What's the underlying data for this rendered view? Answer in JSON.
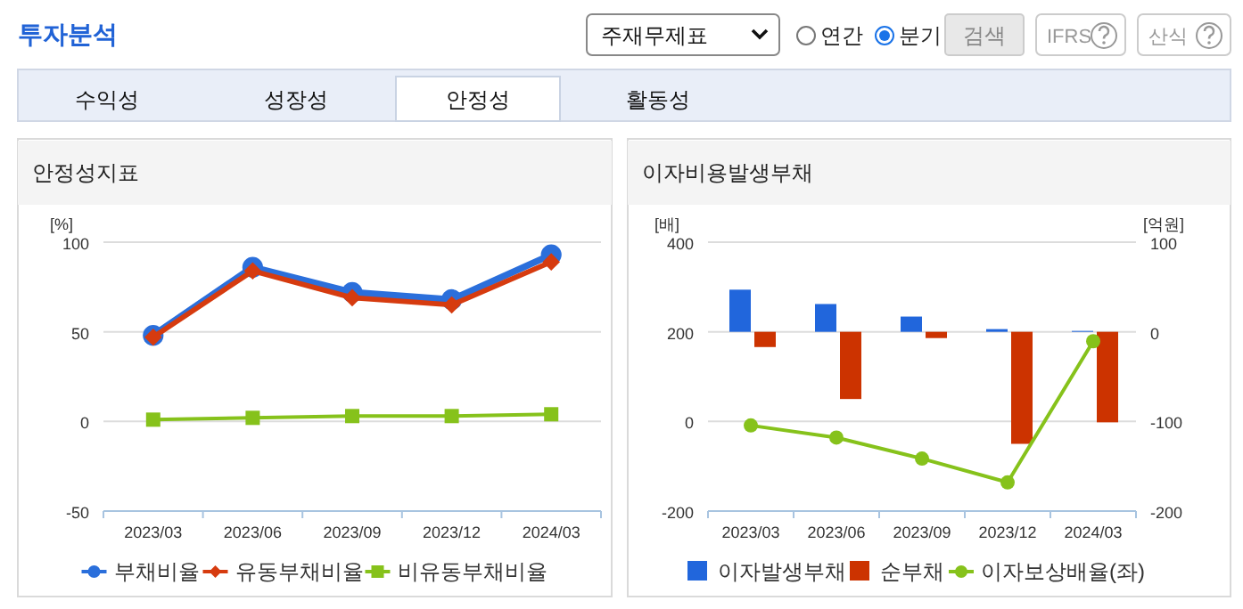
{
  "chart_data": [
    {
      "type": "other",
      "title": "투자분석",
      "annotations": [
        "주재무제표",
        "연간",
        "분기",
        "검색",
        "IFRS",
        "산식",
        "수익성",
        "성장성",
        "안정성",
        "활동성"
      ]
    },
    {
      "type": "line",
      "title": "안정성지표",
      "ylabel": "[%]",
      "categories": [
        "2023/03",
        "2023/06",
        "2023/09",
        "2023/12",
        "2024/03"
      ],
      "series": [
        {
          "name": "부채비율",
          "color": "#2b6fdb",
          "marker": "circle",
          "values": [
            48,
            86,
            72,
            68,
            93
          ]
        },
        {
          "name": "유동부채비율",
          "color": "#d63b0f",
          "marker": "diamond",
          "values": [
            47,
            84,
            69,
            65,
            89
          ]
        },
        {
          "name": "비유동부채비율",
          "color": "#86c21b",
          "marker": "square",
          "values": [
            1,
            2,
            3,
            3,
            4
          ]
        }
      ],
      "ylim": [
        -50,
        100
      ],
      "yticks": [
        -50,
        0,
        50,
        100
      ],
      "grid": "y",
      "legend": "bottom"
    },
    {
      "type": "bar",
      "title": "이자비용발생부채",
      "ylabel": "[배]",
      "y2label": "[억원]",
      "categories": [
        "2023/03",
        "2023/06",
        "2023/09",
        "2023/12",
        "2024/03"
      ],
      "series": [
        {
          "name": "이자발생부채",
          "color": "#2166dc",
          "axis": "y2",
          "values": [
            47,
            31,
            17,
            3,
            1
          ]
        },
        {
          "name": "순부채",
          "color": "#cc3300",
          "axis": "y2",
          "values": [
            -17,
            -75,
            -7,
            -125,
            -101
          ]
        },
        {
          "name": "이자보상배율(좌)",
          "type": "line",
          "color": "#86c21b",
          "marker": "circle",
          "axis": "y",
          "values": [
            -9,
            -36,
            -83,
            -136,
            179
          ]
        }
      ],
      "ylim": [
        -200,
        400
      ],
      "yticks": [
        -200,
        0,
        200,
        400
      ],
      "y2lim": [
        -200,
        100
      ],
      "y2ticks": [
        -200,
        -100,
        0,
        100
      ],
      "grid": "y",
      "legend": "bottom"
    }
  ]
}
